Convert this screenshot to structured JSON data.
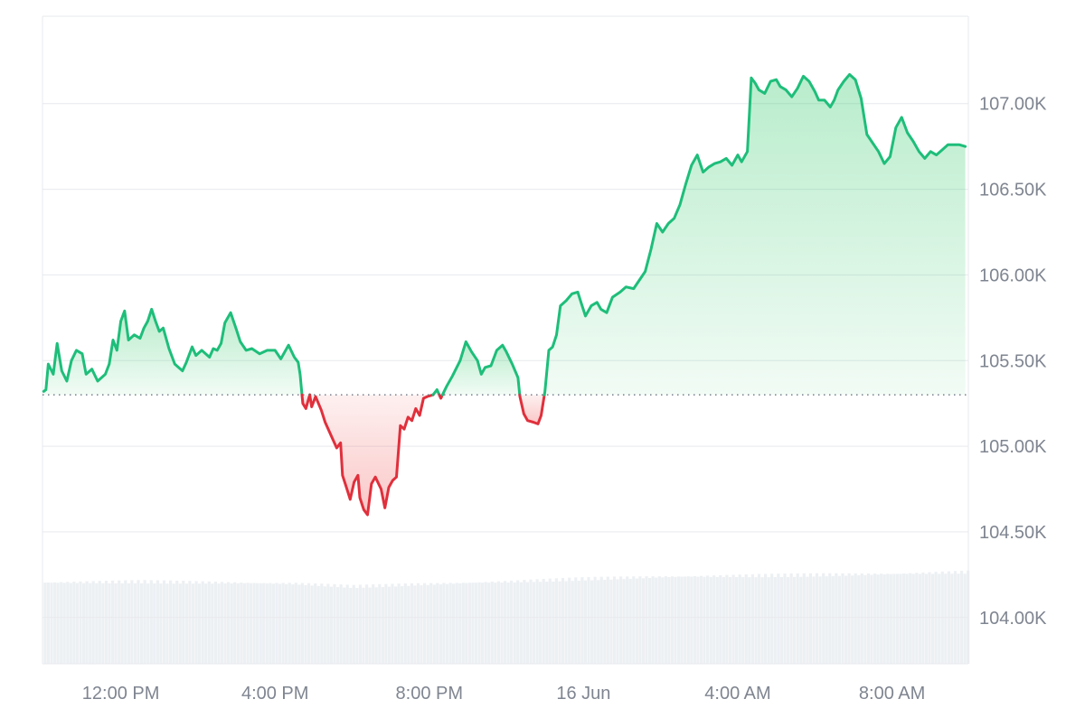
{
  "chart_data": {
    "type": "area",
    "title": "",
    "xlabel": "",
    "ylabel": "",
    "baseline": 105300,
    "ylim": [
      103730,
      107510
    ],
    "y_ticks": [
      {
        "value": 104000,
        "label": "104.00K"
      },
      {
        "value": 104500,
        "label": "104.50K"
      },
      {
        "value": 105000,
        "label": "105.00K"
      },
      {
        "value": 105500,
        "label": "105.50K"
      },
      {
        "value": 106000,
        "label": "106.00K"
      },
      {
        "value": 106500,
        "label": "106.50K"
      },
      {
        "value": 107000,
        "label": "107.00K"
      }
    ],
    "x_ticks": [
      {
        "hours": 2,
        "label": "12:00 PM"
      },
      {
        "hours": 6,
        "label": "4:00 PM"
      },
      {
        "hours": 10,
        "label": "8:00 PM"
      },
      {
        "hours": 14,
        "label": "16 Jun"
      },
      {
        "hours": 18,
        "label": "4:00 AM"
      },
      {
        "hours": 22,
        "label": "8:00 AM"
      }
    ],
    "x_range_hours": [
      -0.03,
      23.98
    ],
    "series": [
      {
        "points": [
          [
            0.0,
            105320
          ],
          [
            0.06,
            105330
          ],
          [
            0.12,
            105480
          ],
          [
            0.25,
            105420
          ],
          [
            0.35,
            105600
          ],
          [
            0.47,
            105440
          ],
          [
            0.6,
            105380
          ],
          [
            0.72,
            105500
          ],
          [
            0.85,
            105560
          ],
          [
            1.0,
            105540
          ],
          [
            1.1,
            105420
          ],
          [
            1.25,
            105450
          ],
          [
            1.4,
            105380
          ],
          [
            1.6,
            105420
          ],
          [
            1.7,
            105480
          ],
          [
            1.8,
            105620
          ],
          [
            1.9,
            105560
          ],
          [
            2.0,
            105730
          ],
          [
            2.1,
            105790
          ],
          [
            2.2,
            105620
          ],
          [
            2.35,
            105650
          ],
          [
            2.5,
            105630
          ],
          [
            2.6,
            105690
          ],
          [
            2.7,
            105730
          ],
          [
            2.8,
            105800
          ],
          [
            2.9,
            105730
          ],
          [
            3.0,
            105670
          ],
          [
            3.1,
            105690
          ],
          [
            3.25,
            105570
          ],
          [
            3.4,
            105480
          ],
          [
            3.6,
            105440
          ],
          [
            3.7,
            105490
          ],
          [
            3.85,
            105580
          ],
          [
            3.95,
            105530
          ],
          [
            4.1,
            105560
          ],
          [
            4.3,
            105520
          ],
          [
            4.4,
            105570
          ],
          [
            4.5,
            105560
          ],
          [
            4.6,
            105600
          ],
          [
            4.7,
            105720
          ],
          [
            4.85,
            105780
          ],
          [
            5.0,
            105680
          ],
          [
            5.1,
            105610
          ],
          [
            5.25,
            105560
          ],
          [
            5.4,
            105570
          ],
          [
            5.6,
            105540
          ],
          [
            5.8,
            105560
          ],
          [
            6.0,
            105560
          ],
          [
            6.15,
            105510
          ],
          [
            6.35,
            105590
          ],
          [
            6.5,
            105520
          ],
          [
            6.6,
            105490
          ],
          [
            6.65,
            105420
          ],
          [
            6.72,
            105250
          ],
          [
            6.8,
            105220
          ],
          [
            6.9,
            105300
          ],
          [
            6.95,
            105230
          ],
          [
            7.05,
            105290
          ],
          [
            7.2,
            105210
          ],
          [
            7.3,
            105140
          ],
          [
            7.5,
            105040
          ],
          [
            7.6,
            104990
          ],
          [
            7.7,
            105020
          ],
          [
            7.75,
            104830
          ],
          [
            7.85,
            104760
          ],
          [
            7.95,
            104690
          ],
          [
            8.05,
            104790
          ],
          [
            8.15,
            104830
          ],
          [
            8.2,
            104700
          ],
          [
            8.3,
            104630
          ],
          [
            8.4,
            104600
          ],
          [
            8.5,
            104780
          ],
          [
            8.6,
            104820
          ],
          [
            8.75,
            104750
          ],
          [
            8.85,
            104640
          ],
          [
            8.95,
            104760
          ],
          [
            9.05,
            104800
          ],
          [
            9.15,
            104820
          ],
          [
            9.25,
            105120
          ],
          [
            9.35,
            105100
          ],
          [
            9.45,
            105170
          ],
          [
            9.55,
            105150
          ],
          [
            9.65,
            105220
          ],
          [
            9.75,
            105180
          ],
          [
            9.85,
            105280
          ],
          [
            9.95,
            105290
          ],
          [
            10.1,
            105300
          ],
          [
            10.2,
            105330
          ],
          [
            10.3,
            105280
          ],
          [
            10.45,
            105350
          ],
          [
            10.6,
            105410
          ],
          [
            10.8,
            105500
          ],
          [
            10.95,
            105610
          ],
          [
            11.1,
            105550
          ],
          [
            11.25,
            105500
          ],
          [
            11.35,
            105420
          ],
          [
            11.45,
            105460
          ],
          [
            11.6,
            105470
          ],
          [
            11.75,
            105560
          ],
          [
            11.9,
            105590
          ],
          [
            12.0,
            105550
          ],
          [
            12.15,
            105480
          ],
          [
            12.3,
            105400
          ],
          [
            12.35,
            105290
          ],
          [
            12.45,
            105190
          ],
          [
            12.55,
            105150
          ],
          [
            12.7,
            105140
          ],
          [
            12.82,
            105130
          ],
          [
            12.9,
            105180
          ],
          [
            13.0,
            105320
          ],
          [
            13.1,
            105560
          ],
          [
            13.2,
            105580
          ],
          [
            13.3,
            105650
          ],
          [
            13.4,
            105820
          ],
          [
            13.55,
            105850
          ],
          [
            13.7,
            105890
          ],
          [
            13.85,
            105900
          ],
          [
            13.95,
            105830
          ],
          [
            14.05,
            105760
          ],
          [
            14.2,
            105820
          ],
          [
            14.35,
            105840
          ],
          [
            14.45,
            105800
          ],
          [
            14.6,
            105780
          ],
          [
            14.75,
            105870
          ],
          [
            14.95,
            105900
          ],
          [
            15.1,
            105930
          ],
          [
            15.3,
            105920
          ],
          [
            15.45,
            105970
          ],
          [
            15.6,
            106020
          ],
          [
            15.75,
            106150
          ],
          [
            15.9,
            106300
          ],
          [
            16.05,
            106250
          ],
          [
            16.2,
            106300
          ],
          [
            16.35,
            106330
          ],
          [
            16.5,
            106410
          ],
          [
            16.65,
            106530
          ],
          [
            16.8,
            106640
          ],
          [
            16.95,
            106700
          ],
          [
            17.1,
            106600
          ],
          [
            17.25,
            106630
          ],
          [
            17.4,
            106650
          ],
          [
            17.55,
            106660
          ],
          [
            17.7,
            106680
          ],
          [
            17.85,
            106640
          ],
          [
            18.0,
            106700
          ],
          [
            18.1,
            106660
          ],
          [
            18.25,
            106720
          ],
          [
            18.35,
            107150
          ],
          [
            18.45,
            107120
          ],
          [
            18.55,
            107080
          ],
          [
            18.7,
            107060
          ],
          [
            18.85,
            107130
          ],
          [
            19.0,
            107140
          ],
          [
            19.1,
            107100
          ],
          [
            19.25,
            107080
          ],
          [
            19.4,
            107040
          ],
          [
            19.55,
            107090
          ],
          [
            19.7,
            107160
          ],
          [
            19.85,
            107130
          ],
          [
            20.0,
            107070
          ],
          [
            20.1,
            107020
          ],
          [
            20.25,
            107020
          ],
          [
            20.4,
            106980
          ],
          [
            20.5,
            107020
          ],
          [
            20.6,
            107080
          ],
          [
            20.75,
            107130
          ],
          [
            20.9,
            107170
          ],
          [
            21.05,
            107140
          ],
          [
            21.2,
            107030
          ],
          [
            21.35,
            106820
          ],
          [
            21.5,
            106770
          ],
          [
            21.65,
            106720
          ],
          [
            21.8,
            106650
          ],
          [
            21.95,
            106690
          ],
          [
            22.1,
            106860
          ],
          [
            22.25,
            106920
          ],
          [
            22.4,
            106830
          ],
          [
            22.55,
            106780
          ],
          [
            22.7,
            106720
          ],
          [
            22.85,
            106680
          ],
          [
            23.0,
            106720
          ],
          [
            23.15,
            106700
          ],
          [
            23.3,
            106730
          ],
          [
            23.45,
            106760
          ],
          [
            23.6,
            106760
          ],
          [
            23.75,
            106760
          ],
          [
            23.9,
            106750
          ]
        ]
      }
    ],
    "volume": {
      "relative_levels": [
        [
          0.0,
          0.84
        ],
        [
          2.5,
          0.85
        ],
        [
          4.5,
          0.84
        ],
        [
          6.5,
          0.83
        ],
        [
          8.0,
          0.8
        ],
        [
          9.5,
          0.82
        ],
        [
          12.0,
          0.85
        ],
        [
          14.0,
          0.88
        ],
        [
          16.0,
          0.9
        ],
        [
          18.0,
          0.91
        ],
        [
          20.0,
          0.92
        ],
        [
          22.0,
          0.93
        ],
        [
          23.95,
          0.95
        ]
      ]
    },
    "colors": {
      "up_line": "#1ebe7a",
      "up_fill": "#22c55e",
      "down_line": "#e0303c",
      "down_fill": "#ef4444",
      "grid": "#e7e9ee",
      "baseline_dots": "#6b7280",
      "volume_bar": "#edf0f3",
      "tick_text": "#7f8590"
    },
    "grid": true,
    "legend": "none"
  }
}
